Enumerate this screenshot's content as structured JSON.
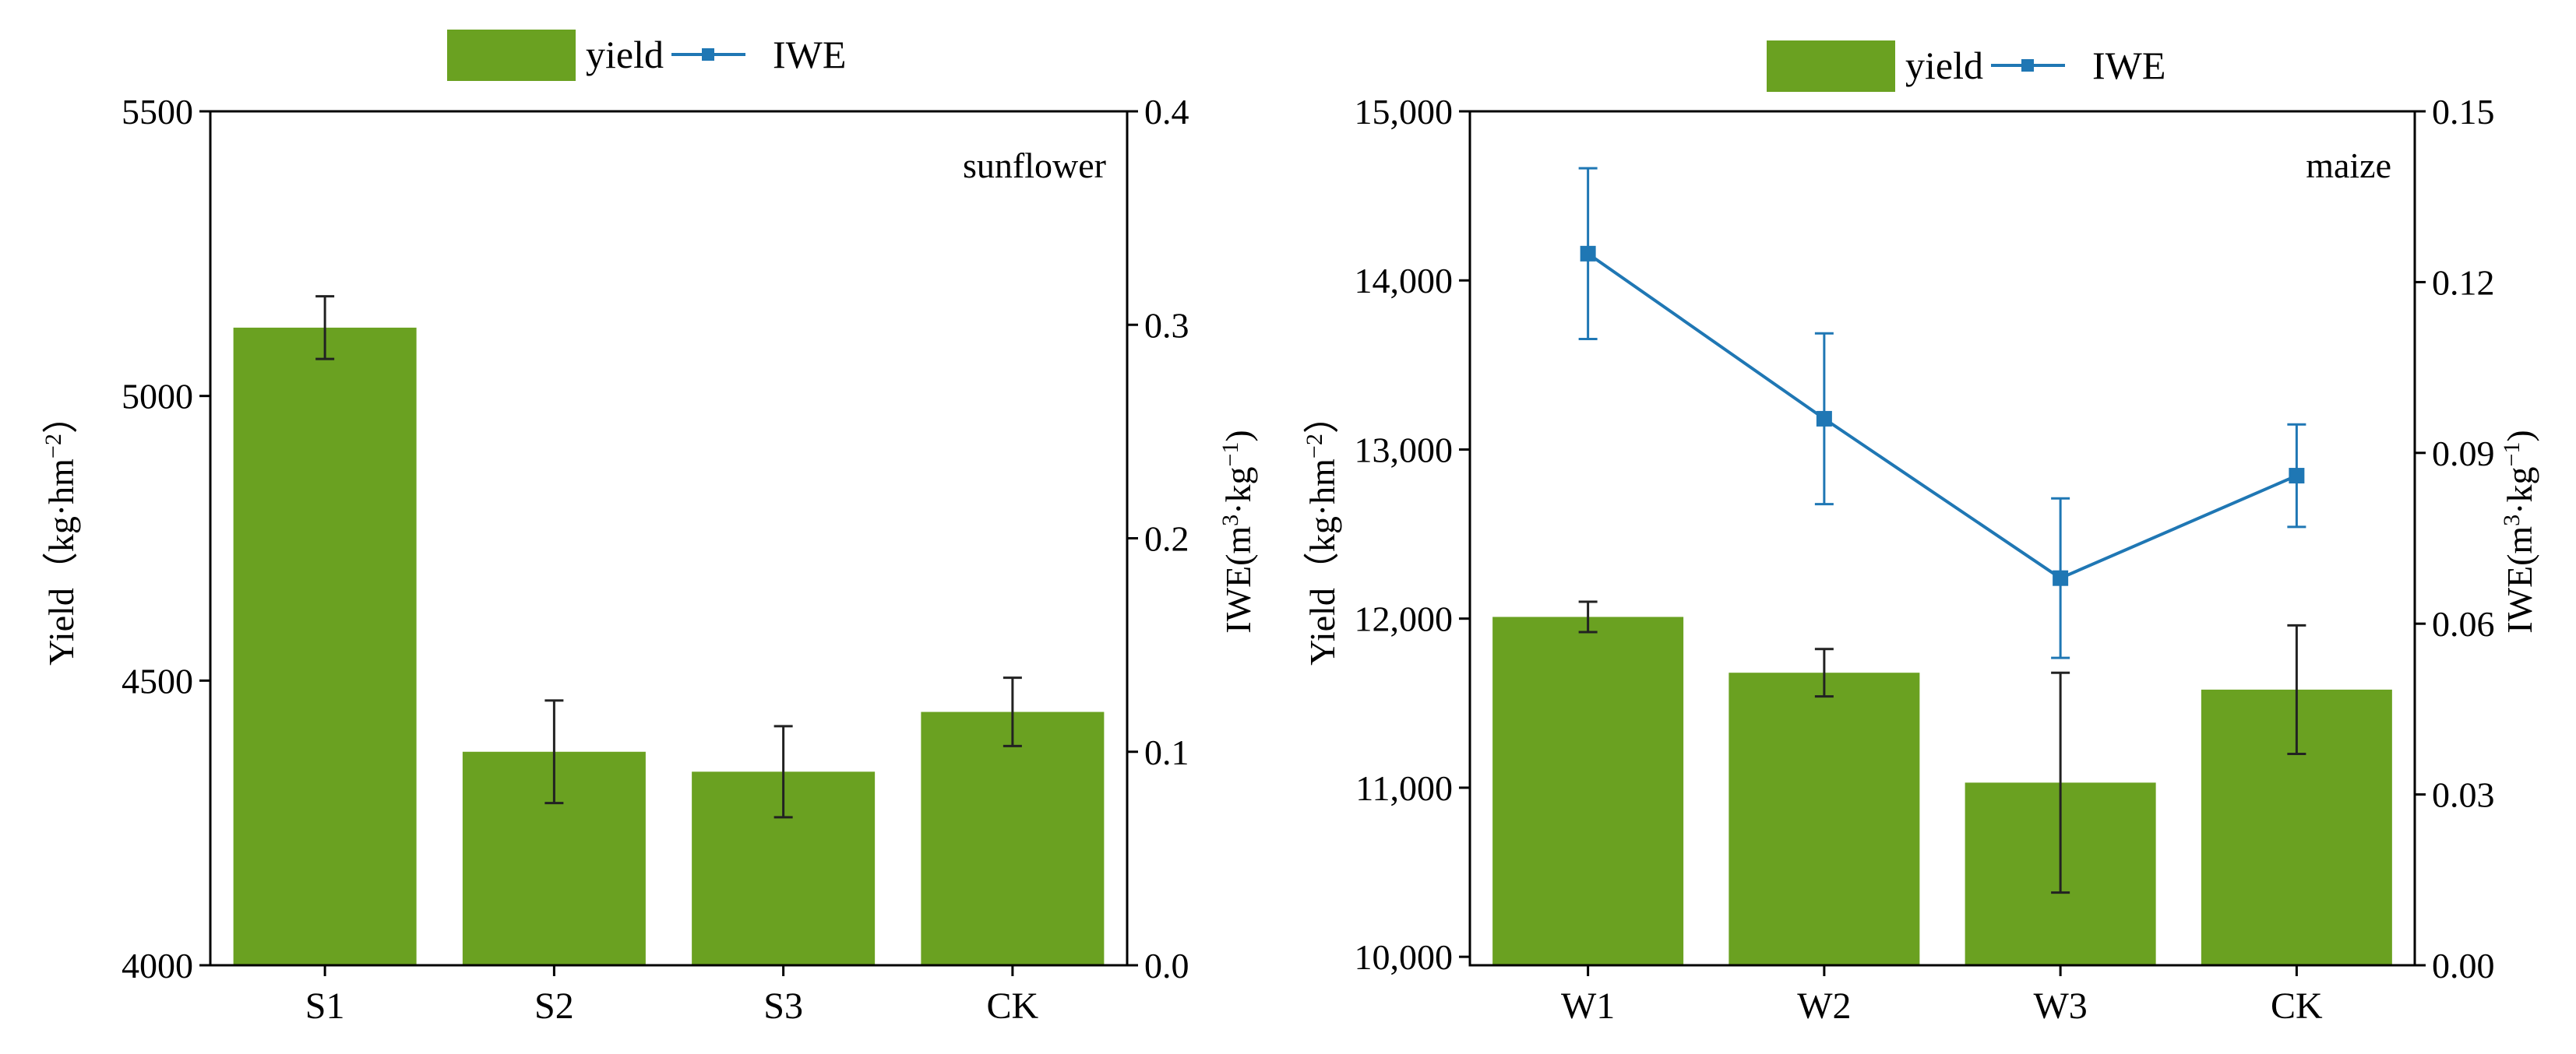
{
  "colors": {
    "bar": "#6aa121",
    "line": "#1f77b4",
    "axis": "#000000"
  },
  "legend": {
    "bar_label": "yield",
    "line_label": "IWE"
  },
  "chart_data": [
    {
      "id": "left",
      "type": "bar+line",
      "annotation": "sunflower",
      "categories": [
        "S1",
        "S2",
        "S3",
        "CK"
      ],
      "ylabel": "Yield",
      "ylabel_units": "（kg·hm",
      "ylabel_exp": "−2",
      "ylabel_close": "）",
      "y2label": "IWE(m",
      "y2label_exp1": "3",
      "y2label_mid": "·kg",
      "y2label_exp2": "−1",
      "y2label_close": ")",
      "ylim": [
        4000,
        5500
      ],
      "yticks": [
        4000,
        4500,
        5000,
        5500
      ],
      "ytick_labels": [
        "4000",
        "4500",
        "5000",
        "5500"
      ],
      "y2lim": [
        0.0,
        0.4
      ],
      "y2ticks": [
        0.0,
        0.1,
        0.2,
        0.3,
        0.4
      ],
      "y2tick_labels": [
        "0.0",
        "0.1",
        "0.2",
        "0.3",
        "0.4"
      ],
      "series": [
        {
          "name": "yield",
          "type": "bar",
          "axis": "left",
          "values": [
            5120,
            4375,
            4340,
            4445
          ],
          "errors": [
            55,
            90,
            80,
            60
          ]
        }
      ]
    },
    {
      "id": "right",
      "type": "bar+line",
      "annotation": "maize",
      "categories": [
        "W1",
        "W2",
        "W3",
        "CK"
      ],
      "ylabel": "Yield",
      "ylabel_units": "（kg·hm",
      "ylabel_exp": "−2",
      "ylabel_close": "）",
      "y2label": "IWE(m",
      "y2label_exp1": "3",
      "y2label_mid": "·kg",
      "y2label_exp2": "−1",
      "y2label_close": ")",
      "ylim": [
        9950,
        15000
      ],
      "yticks": [
        10000,
        11000,
        12000,
        13000,
        14000,
        15000
      ],
      "ytick_labels": [
        "10,000",
        "11,000",
        "12,000",
        "13,000",
        "14,000",
        "15,000"
      ],
      "y2lim": [
        0.0,
        0.15
      ],
      "y2ticks": [
        0.0,
        0.03,
        0.06,
        0.09,
        0.12,
        0.15
      ],
      "y2tick_labels": [
        "0.00",
        "0.03",
        "0.06",
        "0.09",
        "0.12",
        "0.15"
      ],
      "series": [
        {
          "name": "yield",
          "type": "bar",
          "axis": "left",
          "values": [
            12010,
            11680,
            11030,
            11580
          ],
          "errors": [
            90,
            140,
            650,
            380
          ]
        },
        {
          "name": "IWE",
          "type": "line",
          "axis": "right",
          "values": [
            0.125,
            0.096,
            0.068,
            0.086
          ],
          "errors": [
            0.015,
            0.015,
            0.014,
            0.009
          ]
        }
      ]
    }
  ]
}
